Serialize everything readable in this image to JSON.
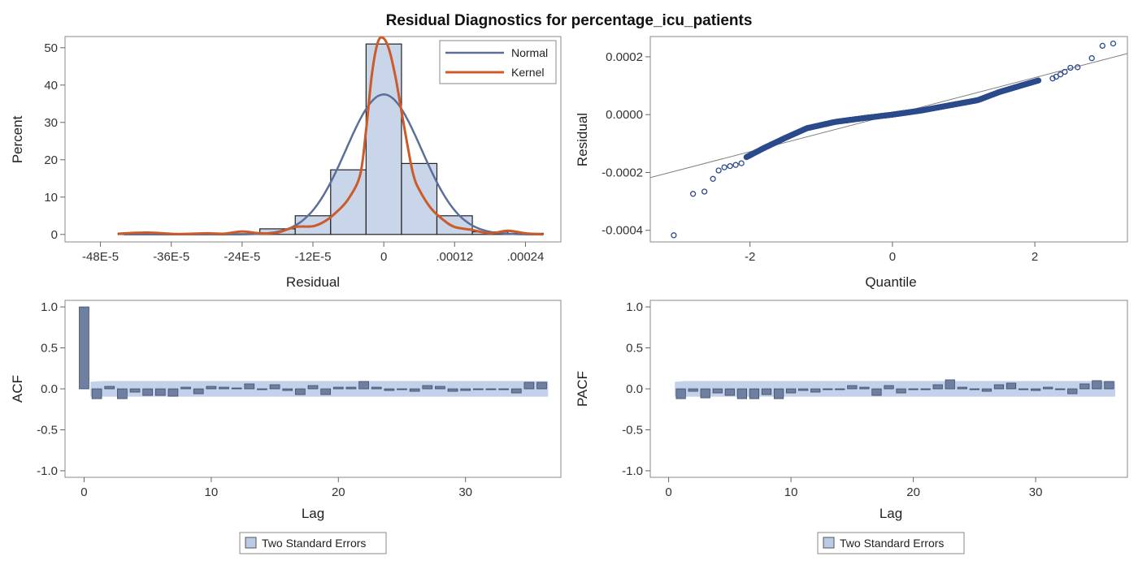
{
  "title": "Residual Diagnostics for percentage_icu_patients",
  "colors": {
    "hist_fill": "#c9d5e8",
    "normal": "#5b6f97",
    "kernel": "#cc5a2a",
    "band": "#b9cae6",
    "acf_bar": "#6f7f9f",
    "qq_point": "#2b4a8b",
    "ref_line": "#7f7f7f"
  },
  "chart_data": [
    {
      "id": "histogram",
      "type": "bar",
      "xlabel": "Residual",
      "ylabel": "Percent",
      "xlim": [
        -0.00054,
        0.0003
      ],
      "ylim": [
        -2,
        53
      ],
      "x_ticks": [
        -0.00048,
        -0.00036,
        -0.00024,
        -0.00012,
        0,
        0.00012,
        0.00024
      ],
      "x_tick_labels": [
        "-48E-5",
        "-36E-5",
        "-24E-5",
        "-12E-5",
        "0",
        ".00012",
        ".00024"
      ],
      "y_ticks": [
        0,
        10,
        20,
        30,
        40,
        50
      ],
      "bin_width": 6e-05,
      "bin_centers": [
        -0.00042,
        -0.00036,
        -0.0003,
        -0.00024,
        -0.00018,
        -0.00012,
        -6e-05,
        0,
        6e-05,
        0.00012,
        0.00018,
        0.00024
      ],
      "values": [
        0.3,
        0,
        0,
        0.2,
        1.5,
        5,
        17.3,
        51,
        19,
        5,
        0.7,
        0.3
      ],
      "legend": [
        "Normal",
        "Kernel"
      ],
      "legend_position": "top-right",
      "normal_curve": {
        "mean": 0,
        "sd": 6.4e-05,
        "peak_percent": 37.5
      },
      "kernel_curve": {
        "x": [
          -0.00045,
          -0.0004,
          -0.00035,
          -0.0003,
          -0.00027,
          -0.00024,
          -0.00021,
          -0.00018,
          -0.00015,
          -0.00012,
          -0.0001,
          -8e-05,
          -6e-05,
          -4e-05,
          -3e-05,
          -2e-05,
          -1e-05,
          0,
          1e-05,
          2e-05,
          3e-05,
          4e-05,
          5e-05,
          6e-05,
          8e-05,
          0.0001,
          0.00012,
          0.00015,
          0.00018,
          0.00021,
          0.00024,
          0.00027
        ],
        "y": [
          0.2,
          0.5,
          0.1,
          0.3,
          0.2,
          0.8,
          0.3,
          0.5,
          2,
          2.2,
          3.5,
          6,
          9.5,
          16,
          28,
          43,
          51.5,
          52.5,
          49,
          42,
          33,
          24,
          16,
          12,
          7,
          4,
          2,
          1.2,
          0.3,
          1,
          0.3,
          0
        ]
      }
    },
    {
      "id": "qqplot",
      "type": "scatter",
      "xlabel": "Quantile",
      "ylabel": "Residual",
      "xlim": [
        -3.4,
        3.3
      ],
      "ylim": [
        -0.00044,
        0.00027
      ],
      "x_ticks": [
        -2,
        0,
        2
      ],
      "x_tick_labels": [
        "-2",
        "0",
        "2"
      ],
      "y_ticks": [
        -0.0004,
        -0.0002,
        0,
        0.0002
      ],
      "y_tick_labels": [
        "-0.0004",
        "-0.0002",
        "0.0000",
        "0.0002"
      ],
      "reference_line": {
        "intercept": 0,
        "slope": 6.4e-05
      },
      "n_points": 420,
      "points": [
        [
          -3.07,
          -0.000417
        ],
        [
          -2.8,
          -0.000274
        ],
        [
          -2.64,
          -0.000266
        ],
        [
          -2.52,
          -0.000222
        ],
        [
          -2.44,
          -0.000193
        ],
        [
          -2.36,
          -0.000182
        ],
        [
          -2.28,
          -0.000178
        ],
        [
          -2.2,
          -0.000174
        ],
        [
          -2.12,
          -0.000168
        ],
        [
          2.25,
          0.000125
        ],
        [
          2.3,
          0.000131
        ],
        [
          2.36,
          0.000139
        ],
        [
          2.42,
          0.000148
        ],
        [
          2.5,
          0.000162
        ],
        [
          2.6,
          0.000164
        ],
        [
          2.8,
          0.000195
        ],
        [
          2.95,
          0.000238
        ],
        [
          3.1,
          0.000246
        ]
      ],
      "bulk_curve": {
        "q": [
          -2.05,
          -1.8,
          -1.5,
          -1.2,
          -0.8,
          -0.4,
          0,
          0.4,
          0.8,
          1.2,
          1.5,
          1.8,
          2.05
        ],
        "r": [
          -0.000147,
          -0.000115,
          -8e-05,
          -4.7e-05,
          -2.5e-05,
          -1.2e-05,
          0,
          1.4e-05,
          3.2e-05,
          5e-05,
          7.8e-05,
          0.0001,
          0.000118
        ]
      }
    },
    {
      "id": "acf",
      "type": "bar",
      "xlabel": "Lag",
      "ylabel": "ACF",
      "xlim": [
        -1.5,
        37.5
      ],
      "ylim": [
        -1.08,
        1.08
      ],
      "x_ticks": [
        0,
        10,
        20,
        30
      ],
      "y_ticks": [
        -1.0,
        -0.5,
        0.0,
        0.5,
        1.0
      ],
      "y_tick_labels": [
        "-1.0",
        "-0.5",
        "0.0",
        "0.5",
        "1.0"
      ],
      "lags": [
        0,
        1,
        2,
        3,
        4,
        5,
        6,
        7,
        8,
        9,
        10,
        11,
        12,
        13,
        14,
        15,
        16,
        17,
        18,
        19,
        20,
        21,
        22,
        23,
        24,
        25,
        26,
        27,
        28,
        29,
        30,
        31,
        32,
        33,
        34,
        35,
        36
      ],
      "values": [
        1.0,
        -0.12,
        0.03,
        -0.12,
        -0.04,
        -0.08,
        -0.08,
        -0.09,
        0.02,
        -0.06,
        0.03,
        0.02,
        0.01,
        0.06,
        0.0,
        0.05,
        -0.02,
        -0.07,
        0.04,
        -0.07,
        0.02,
        0.02,
        0.09,
        0.02,
        -0.02,
        -0.01,
        -0.03,
        0.04,
        0.03,
        -0.03,
        -0.02,
        -0.01,
        0.0,
        -0.01,
        -0.05,
        0.08,
        0.08
      ],
      "std_err_band": 0.095,
      "legend": [
        "Two Standard Errors"
      ]
    },
    {
      "id": "pacf",
      "type": "bar",
      "xlabel": "Lag",
      "ylabel": "PACF",
      "xlim": [
        -1.5,
        37.5
      ],
      "ylim": [
        -1.08,
        1.08
      ],
      "x_ticks": [
        0,
        10,
        20,
        30
      ],
      "y_ticks": [
        -1.0,
        -0.5,
        0.0,
        0.5,
        1.0
      ],
      "y_tick_labels": [
        "-1.0",
        "-0.5",
        "0.0",
        "0.5",
        "1.0"
      ],
      "lags": [
        1,
        2,
        3,
        4,
        5,
        6,
        7,
        8,
        9,
        10,
        11,
        12,
        13,
        14,
        15,
        16,
        17,
        18,
        19,
        20,
        21,
        22,
        23,
        24,
        25,
        26,
        27,
        28,
        29,
        30,
        31,
        32,
        33,
        34,
        35,
        36
      ],
      "values": [
        -0.12,
        -0.03,
        -0.11,
        -0.05,
        -0.08,
        -0.12,
        -0.12,
        -0.07,
        -0.12,
        -0.05,
        -0.02,
        -0.04,
        -0.01,
        0.0,
        0.04,
        0.02,
        -0.08,
        0.04,
        -0.05,
        0.0,
        -0.01,
        0.05,
        0.11,
        0.02,
        0.0,
        -0.03,
        0.05,
        0.07,
        0.0,
        -0.02,
        0.02,
        0.0,
        -0.06,
        0.06,
        0.1,
        0.09
      ],
      "std_err_band": 0.095,
      "legend": [
        "Two Standard Errors"
      ]
    }
  ]
}
